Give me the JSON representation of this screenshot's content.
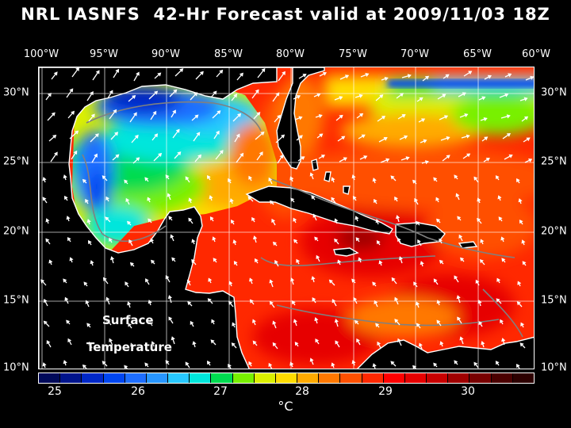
{
  "title": "NRL IASNFS  42-Hr Forecast valid at 2009/11/03 18Z",
  "lon_labels": [
    "100°W",
    "95°W",
    "90°W",
    "85°W",
    "80°W",
    "75°W",
    "70°W",
    "65°W",
    "60°W"
  ],
  "lat_labels": [
    "30°N",
    "25°N",
    "20°N",
    "15°N",
    "10°N"
  ],
  "overlay": {
    "line1": "Surface",
    "line2": "Temperature"
  },
  "colorbar": {
    "colors": [
      "#000a5a",
      "#00148c",
      "#0028c8",
      "#0046f0",
      "#1e6eff",
      "#2896ff",
      "#28c8ff",
      "#00e6dc",
      "#00dc50",
      "#78f000",
      "#dcf000",
      "#ffdc00",
      "#ffaa00",
      "#ff7800",
      "#ff5000",
      "#ff2800",
      "#ff0000",
      "#e60000",
      "#c80000",
      "#a00000",
      "#780000",
      "#4b0000",
      "#2d0000"
    ],
    "tick_labels": [
      "25",
      "26",
      "27",
      "28",
      "29",
      "30"
    ],
    "units": "°C"
  },
  "map": {
    "lon_range": [
      -100,
      -60
    ],
    "lat_range": [
      10,
      31
    ],
    "ocean_color": "#ff2800",
    "land_color": "#000000",
    "coast_color": "#ffffff",
    "grid_color": "#ffffff",
    "contour_color": "#808080",
    "wind_arrow_color": "#ffffff"
  }
}
